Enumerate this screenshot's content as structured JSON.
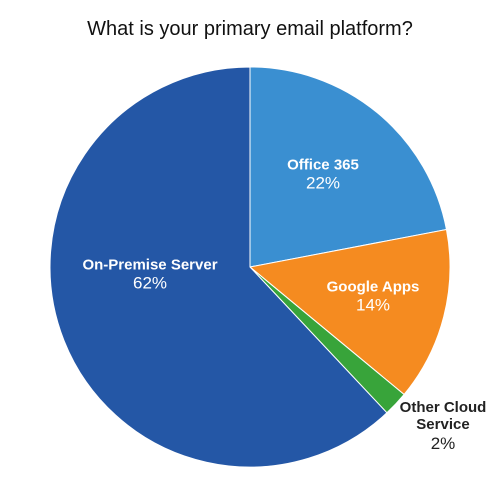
{
  "chart_data": {
    "type": "pie",
    "title": "What is your primary email platform?",
    "categories": [
      "Office 365",
      "Google Apps",
      "Other Cloud Service",
      "On-Premise Server"
    ],
    "values": [
      22,
      14,
      2,
      62
    ],
    "value_labels": [
      "22%",
      "14%",
      "2%",
      "62%"
    ],
    "colors": [
      "#3a8fd1",
      "#f58b20",
      "#38a43a",
      "#2457a6"
    ]
  }
}
